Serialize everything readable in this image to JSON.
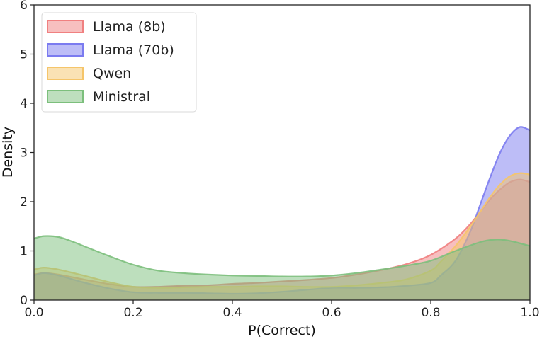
{
  "chart_data": {
    "type": "area",
    "title": "",
    "xlabel": "P(Correct)",
    "ylabel": "Density",
    "xlim": [
      0.0,
      1.0
    ],
    "ylim": [
      0,
      6
    ],
    "xticks": [
      "0.0",
      "0.2",
      "0.4",
      "0.6",
      "0.8",
      "1.0"
    ],
    "yticks": [
      "0",
      "1",
      "2",
      "3",
      "4",
      "5",
      "6"
    ],
    "grid": false,
    "legend_position": "top-left",
    "series": [
      {
        "name": "Llama (8b)",
        "color": "#f08080",
        "x": [
          0.0,
          0.02,
          0.05,
          0.1,
          0.15,
          0.2,
          0.25,
          0.3,
          0.35,
          0.4,
          0.45,
          0.5,
          0.55,
          0.6,
          0.65,
          0.7,
          0.75,
          0.8,
          0.85,
          0.88,
          0.9,
          0.92,
          0.94,
          0.96,
          0.98,
          1.0
        ],
        "values": [
          0.52,
          0.55,
          0.52,
          0.42,
          0.33,
          0.27,
          0.27,
          0.29,
          0.3,
          0.33,
          0.35,
          0.38,
          0.41,
          0.45,
          0.52,
          0.61,
          0.73,
          0.92,
          1.25,
          1.55,
          1.8,
          2.05,
          2.25,
          2.4,
          2.45,
          2.4
        ]
      },
      {
        "name": "Llama (70b)",
        "color": "#7b7bf0",
        "x": [
          0.0,
          0.02,
          0.05,
          0.1,
          0.15,
          0.2,
          0.25,
          0.3,
          0.35,
          0.4,
          0.45,
          0.5,
          0.55,
          0.6,
          0.65,
          0.7,
          0.75,
          0.8,
          0.82,
          0.85,
          0.88,
          0.9,
          0.92,
          0.94,
          0.96,
          0.98,
          1.0
        ],
        "values": [
          0.5,
          0.55,
          0.5,
          0.36,
          0.24,
          0.16,
          0.15,
          0.15,
          0.14,
          0.13,
          0.14,
          0.17,
          0.21,
          0.25,
          0.25,
          0.26,
          0.29,
          0.35,
          0.5,
          0.8,
          1.4,
          1.95,
          2.5,
          3.0,
          3.35,
          3.52,
          3.45
        ]
      },
      {
        "name": "Qwen",
        "color": "#f5c56a",
        "x": [
          0.0,
          0.02,
          0.05,
          0.1,
          0.15,
          0.2,
          0.25,
          0.3,
          0.35,
          0.4,
          0.45,
          0.5,
          0.55,
          0.6,
          0.65,
          0.7,
          0.75,
          0.8,
          0.82,
          0.85,
          0.88,
          0.9,
          0.92,
          0.94,
          0.96,
          0.98,
          1.0
        ],
        "values": [
          0.62,
          0.66,
          0.62,
          0.5,
          0.37,
          0.27,
          0.25,
          0.26,
          0.27,
          0.27,
          0.28,
          0.28,
          0.27,
          0.27,
          0.3,
          0.35,
          0.42,
          0.6,
          0.78,
          1.1,
          1.5,
          1.8,
          2.1,
          2.35,
          2.52,
          2.58,
          2.55
        ]
      },
      {
        "name": "Ministral",
        "color": "#7cbf7c",
        "x": [
          0.0,
          0.02,
          0.05,
          0.08,
          0.1,
          0.15,
          0.2,
          0.25,
          0.3,
          0.35,
          0.4,
          0.45,
          0.5,
          0.55,
          0.6,
          0.65,
          0.7,
          0.75,
          0.8,
          0.85,
          0.9,
          0.93,
          0.95,
          0.97,
          1.0
        ],
        "values": [
          1.25,
          1.3,
          1.28,
          1.18,
          1.1,
          0.9,
          0.72,
          0.6,
          0.55,
          0.52,
          0.5,
          0.49,
          0.48,
          0.48,
          0.5,
          0.55,
          0.62,
          0.7,
          0.8,
          1.0,
          1.18,
          1.23,
          1.22,
          1.18,
          1.1
        ]
      }
    ]
  }
}
